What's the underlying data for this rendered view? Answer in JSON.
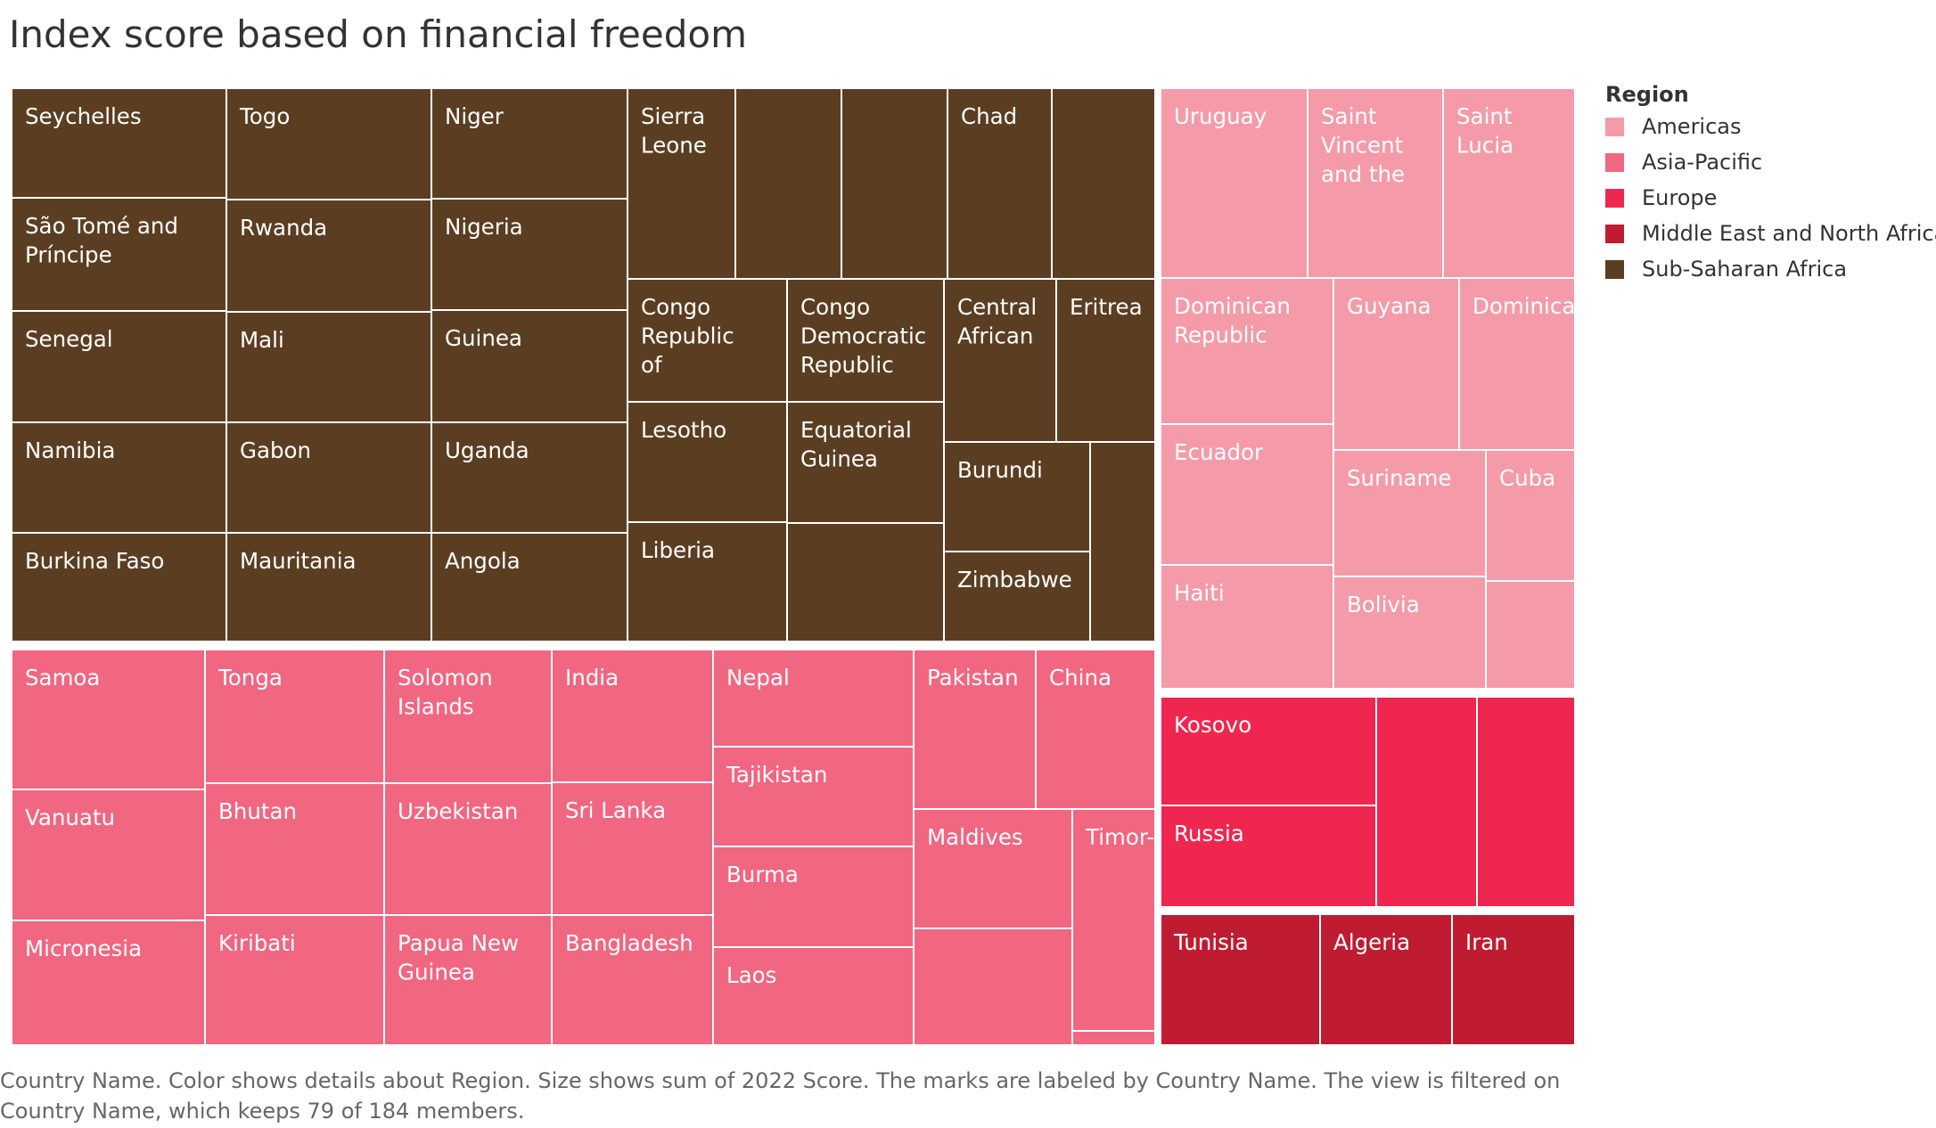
{
  "chart_data": {
    "type": "treemap",
    "title": "Index score based on financial freedom",
    "legend": {
      "title": "Region",
      "placement": "right",
      "entries": [
        {
          "name": "Americas",
          "color": "#F49AA9"
        },
        {
          "name": "Asia-Pacific",
          "color": "#F16681"
        },
        {
          "name": "Europe",
          "color": "#EF2650"
        },
        {
          "name": "Middle East and North Africa",
          "color": "#C01C31"
        },
        {
          "name": "Sub-Saharan Africa",
          "color": "#5B3E22"
        }
      ]
    },
    "caption": "Country Name.  Color shows details about Region.  Size shows sum of 2022 Score.  The marks are labeled by Country Name. The view is filtered on Country Name, which keeps 79 of 184 members.",
    "cells": [
      {
        "region": "Sub-Saharan Africa",
        "label": "Seychelles"
      },
      {
        "region": "Sub-Saharan Africa",
        "label": "São Tomé and Príncipe"
      },
      {
        "region": "Sub-Saharan Africa",
        "label": "Senegal"
      },
      {
        "region": "Sub-Saharan Africa",
        "label": "Namibia"
      },
      {
        "region": "Sub-Saharan Africa",
        "label": "Burkina Faso"
      },
      {
        "region": "Sub-Saharan Africa",
        "label": "Togo"
      },
      {
        "region": "Sub-Saharan Africa",
        "label": "Rwanda"
      },
      {
        "region": "Sub-Saharan Africa",
        "label": "Mali"
      },
      {
        "region": "Sub-Saharan Africa",
        "label": "Gabon"
      },
      {
        "region": "Sub-Saharan Africa",
        "label": "Mauritania"
      },
      {
        "region": "Sub-Saharan Africa",
        "label": "Niger"
      },
      {
        "region": "Sub-Saharan Africa",
        "label": "Nigeria"
      },
      {
        "region": "Sub-Saharan Africa",
        "label": "Guinea"
      },
      {
        "region": "Sub-Saharan Africa",
        "label": "Uganda"
      },
      {
        "region": "Sub-Saharan Africa",
        "label": "Angola"
      },
      {
        "region": "Sub-Saharan Africa",
        "label": "Sierra Leone"
      },
      {
        "region": "Sub-Saharan Africa",
        "label": ""
      },
      {
        "region": "Sub-Saharan Africa",
        "label": ""
      },
      {
        "region": "Sub-Saharan Africa",
        "label": "Chad"
      },
      {
        "region": "Sub-Saharan Africa",
        "label": ""
      },
      {
        "region": "Sub-Saharan Africa",
        "label": "Congo Republic of"
      },
      {
        "region": "Sub-Saharan Africa",
        "label": "Congo Democratic Republic of"
      },
      {
        "region": "Sub-Saharan Africa",
        "label": "Central African"
      },
      {
        "region": "Sub-Saharan Africa",
        "label": "Eritrea"
      },
      {
        "region": "Sub-Saharan Africa",
        "label": "Lesotho"
      },
      {
        "region": "Sub-Saharan Africa",
        "label": "Equatorial Guinea"
      },
      {
        "region": "Sub-Saharan Africa",
        "label": "Liberia"
      },
      {
        "region": "Sub-Saharan Africa",
        "label": ""
      },
      {
        "region": "Sub-Saharan Africa",
        "label": "Burundi"
      },
      {
        "region": "Sub-Saharan Africa",
        "label": ""
      },
      {
        "region": "Sub-Saharan Africa",
        "label": "Zimbabwe"
      },
      {
        "region": "Asia-Pacific",
        "label": "Samoa"
      },
      {
        "region": "Asia-Pacific",
        "label": "Vanuatu"
      },
      {
        "region": "Asia-Pacific",
        "label": "Micronesia"
      },
      {
        "region": "Asia-Pacific",
        "label": "Tonga"
      },
      {
        "region": "Asia-Pacific",
        "label": "Bhutan"
      },
      {
        "region": "Asia-Pacific",
        "label": "Kiribati"
      },
      {
        "region": "Asia-Pacific",
        "label": "Solomon Islands"
      },
      {
        "region": "Asia-Pacific",
        "label": "Uzbekistan"
      },
      {
        "region": "Asia-Pacific",
        "label": "Papua New Guinea"
      },
      {
        "region": "Asia-Pacific",
        "label": "India"
      },
      {
        "region": "Asia-Pacific",
        "label": "Sri Lanka"
      },
      {
        "region": "Asia-Pacific",
        "label": "Bangladesh"
      },
      {
        "region": "Asia-Pacific",
        "label": "Nepal"
      },
      {
        "region": "Asia-Pacific",
        "label": "Tajikistan"
      },
      {
        "region": "Asia-Pacific",
        "label": "Burma"
      },
      {
        "region": "Asia-Pacific",
        "label": "Laos"
      },
      {
        "region": "Asia-Pacific",
        "label": "Pakistan"
      },
      {
        "region": "Asia-Pacific",
        "label": "China"
      },
      {
        "region": "Asia-Pacific",
        "label": "Maldives"
      },
      {
        "region": "Asia-Pacific",
        "label": "Timor-Leste"
      },
      {
        "region": "Asia-Pacific",
        "label": ""
      },
      {
        "region": "Asia-Pacific",
        "label": ""
      },
      {
        "region": "Americas",
        "label": "Uruguay"
      },
      {
        "region": "Americas",
        "label": "Saint Vincent and the"
      },
      {
        "region": "Americas",
        "label": "Saint Lucia"
      },
      {
        "region": "Americas",
        "label": "Dominican Republic"
      },
      {
        "region": "Americas",
        "label": "Guyana"
      },
      {
        "region": "Americas",
        "label": "Dominica"
      },
      {
        "region": "Americas",
        "label": "Ecuador"
      },
      {
        "region": "Americas",
        "label": "Haiti"
      },
      {
        "region": "Americas",
        "label": "Suriname"
      },
      {
        "region": "Americas",
        "label": "Cuba"
      },
      {
        "region": "Americas",
        "label": "Bolivia"
      },
      {
        "region": "Americas",
        "label": ""
      },
      {
        "region": "Europe",
        "label": "Kosovo"
      },
      {
        "region": "Europe",
        "label": "Russia"
      },
      {
        "region": "Europe",
        "label": ""
      },
      {
        "region": "Europe",
        "label": ""
      },
      {
        "region": "Middle East and North Africa",
        "label": "Tunisia"
      },
      {
        "region": "Middle East and North Africa",
        "label": "Algeria"
      },
      {
        "region": "Middle East and North Africa",
        "label": "Iran"
      }
    ]
  }
}
